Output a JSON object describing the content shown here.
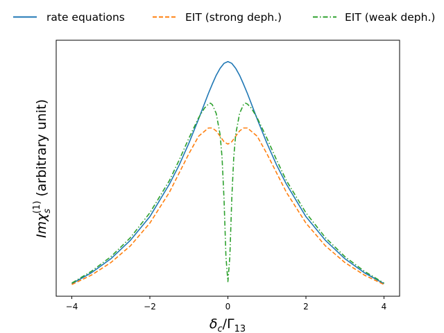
{
  "chart_data": {
    "type": "line",
    "title": "",
    "xlabel": "δc/Γ13",
    "ylabel": "Imχs(1) (arbitrary unit)",
    "xlim": [
      -4.4,
      4.4
    ],
    "ylim": [
      0.165,
      1.04
    ],
    "xticks": [
      -4,
      -2,
      0,
      2,
      4
    ],
    "xtick_labels": [
      "−4",
      "−2",
      "0",
      "2",
      "4"
    ],
    "yticks_visible": false,
    "grid": false,
    "legend_position": "top, above plot",
    "series": [
      {
        "name": "rate equations",
        "color": "#1f77b4",
        "style": "solid",
        "x": [
          -4,
          -3.5,
          -3,
          -2.5,
          -2,
          -1.5,
          -1.25,
          -1,
          -0.75,
          -0.5,
          -0.4,
          -0.3,
          -0.2,
          -0.1,
          0,
          0.1,
          0.2,
          0.3,
          0.4,
          0.5,
          0.75,
          1,
          1.25,
          1.5,
          2,
          2.5,
          3,
          3.5,
          4
        ],
        "y": [
          0.208,
          0.245,
          0.293,
          0.356,
          0.437,
          0.548,
          0.613,
          0.688,
          0.771,
          0.858,
          0.89,
          0.92,
          0.944,
          0.961,
          0.967,
          0.961,
          0.944,
          0.92,
          0.89,
          0.858,
          0.771,
          0.688,
          0.613,
          0.548,
          0.437,
          0.356,
          0.293,
          0.245,
          0.208
        ]
      },
      {
        "name": "EIT (strong deph.)",
        "color": "#ff7f0e",
        "style": "dashed",
        "x": [
          -4,
          -3.5,
          -3,
          -2.5,
          -2,
          -1.5,
          -1.25,
          -1,
          -0.75,
          -0.5,
          -0.4,
          -0.3,
          -0.2,
          -0.1,
          0,
          0.1,
          0.2,
          0.3,
          0.4,
          0.5,
          0.75,
          1,
          1.25,
          1.5,
          2,
          2.5,
          3,
          3.5,
          4
        ],
        "y": [
          0.205,
          0.237,
          0.28,
          0.337,
          0.415,
          0.52,
          0.586,
          0.652,
          0.712,
          0.74,
          0.74,
          0.73,
          0.712,
          0.693,
          0.685,
          0.693,
          0.712,
          0.73,
          0.74,
          0.74,
          0.712,
          0.652,
          0.586,
          0.52,
          0.415,
          0.337,
          0.28,
          0.237,
          0.205
        ]
      },
      {
        "name": "EIT (weak deph.)",
        "color": "#2ca02c",
        "style": "dashdot",
        "x": [
          -4,
          -3.5,
          -3,
          -2.5,
          -2,
          -1.5,
          -1.25,
          -1,
          -0.75,
          -0.6,
          -0.5,
          -0.45,
          -0.4,
          -0.3,
          -0.2,
          -0.15,
          -0.1,
          -0.05,
          0,
          0.05,
          0.1,
          0.15,
          0.2,
          0.3,
          0.4,
          0.45,
          0.5,
          0.6,
          0.75,
          1,
          1.25,
          1.5,
          2,
          2.5,
          3,
          3.5,
          4
        ],
        "y": [
          0.21,
          0.25,
          0.3,
          0.365,
          0.45,
          0.56,
          0.63,
          0.705,
          0.775,
          0.808,
          0.822,
          0.825,
          0.82,
          0.79,
          0.718,
          0.64,
          0.5,
          0.3,
          0.215,
          0.3,
          0.5,
          0.64,
          0.718,
          0.79,
          0.82,
          0.825,
          0.822,
          0.808,
          0.775,
          0.705,
          0.63,
          0.56,
          0.45,
          0.365,
          0.3,
          0.25,
          0.21
        ]
      }
    ]
  }
}
